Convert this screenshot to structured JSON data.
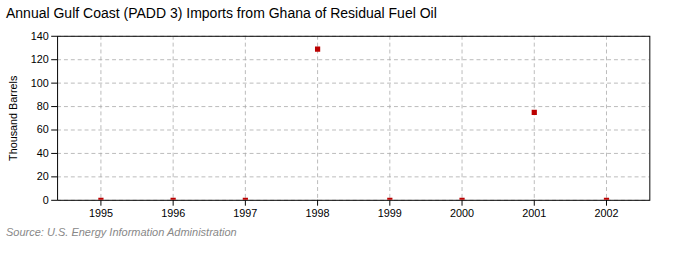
{
  "chart_data": {
    "type": "scatter",
    "title": "Annual Gulf Coast (PADD 3) Imports from Ghana of Residual Fuel Oil",
    "ylabel": "Thousand Barrels",
    "source": "Source: U.S. Energy Information Administration",
    "x": [
      1995,
      1996,
      1997,
      1998,
      1999,
      2000,
      2001,
      2002
    ],
    "values": [
      0,
      0,
      0,
      129,
      0,
      0,
      75,
      0
    ],
    "color": "#BB0000",
    "marker": "square",
    "xlim": [
      1994.4,
      2002.6
    ],
    "xticks": [
      1995,
      1996,
      1997,
      1998,
      1999,
      2000,
      2001,
      2002
    ],
    "ylim": [
      0,
      140
    ],
    "yticks": [
      0,
      20,
      40,
      60,
      80,
      100,
      120,
      140
    ],
    "grid": true
  }
}
